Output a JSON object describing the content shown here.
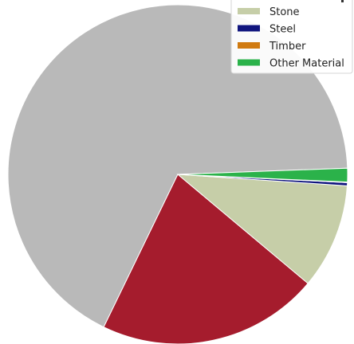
{
  "chart_data": {
    "type": "pie",
    "title": "",
    "slices": [
      {
        "label": "",
        "value": 67.0,
        "color": "#b9b9b9"
      },
      {
        "label": "",
        "value": 21.0,
        "color": "#a51c2d"
      },
      {
        "label": "Stone",
        "value": 10.0,
        "color": "#c6cea8"
      },
      {
        "label": "Steel",
        "value": 0.3,
        "color": "#10157e"
      },
      {
        "label": "Timber",
        "value": 0.05,
        "color": "#d07a10"
      },
      {
        "label": "Other Material",
        "value": 1.3,
        "color": "#2bb24a"
      }
    ],
    "legend": {
      "placement": "top-right",
      "entries": [
        "Stone",
        "Steel",
        "Timber",
        "Other Material"
      ]
    }
  }
}
